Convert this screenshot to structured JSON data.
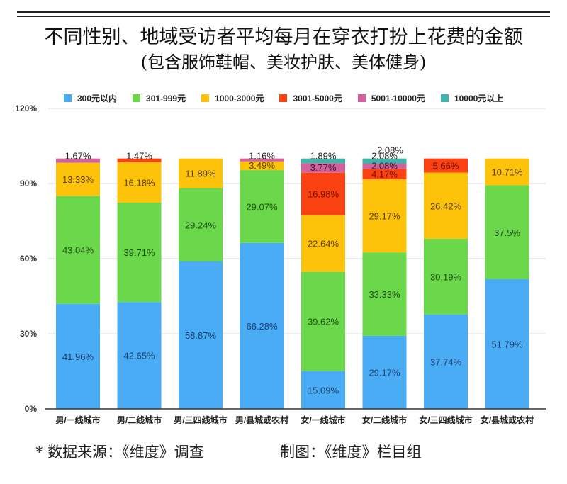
{
  "title": "不同性别、地域受访者平均每月在穿衣打扮上花费的金额",
  "subtitle": "(包含服饰鞋帽、美妆护肤、美体健身)",
  "footer": {
    "source": "* 数据来源：《维度》调查",
    "credit": "制图：《维度》栏目组"
  },
  "chart_data": {
    "type": "bar",
    "stacked": true,
    "title": "不同性别、地域受访者平均每月在穿衣打扮上花费的金额",
    "subtitle": "(包含服饰鞋帽、美妆护肤、美体健身)",
    "xlabel": "",
    "ylabel": "",
    "ylim": [
      0,
      120
    ],
    "yticks": [
      0,
      30,
      60,
      90,
      120
    ],
    "ytick_labels": [
      "0%",
      "30%",
      "60%",
      "90%",
      "120%"
    ],
    "grid": true,
    "legend_position": "top",
    "categories": [
      "男/一线城市",
      "男/二线城市",
      "男/三四线城市",
      "男/县城或农村",
      "女/一线城市",
      "女/二线城市",
      "女/三四线城市",
      "女/县城或农村"
    ],
    "series": [
      {
        "name": "300元以内",
        "color": "#4aacf5",
        "label_color": "#1a3f6e",
        "values": [
          41.96,
          42.65,
          58.87,
          66.28,
          15.09,
          29.17,
          37.74,
          51.79
        ]
      },
      {
        "name": "301-999元",
        "color": "#6ad84a",
        "label_color": "#1d4d12",
        "values": [
          43.04,
          39.71,
          29.24,
          29.07,
          39.62,
          33.33,
          30.19,
          37.5
        ]
      },
      {
        "name": "1000-3000元",
        "color": "#fdc30a",
        "label_color": "#5a3d00",
        "values": [
          13.33,
          16.18,
          11.89,
          3.49,
          22.64,
          29.17,
          26.42,
          10.71
        ]
      },
      {
        "name": "3001-5000元",
        "color": "#fb4212",
        "label_color": "#6e0e00",
        "values": [
          0,
          1.47,
          0,
          0,
          16.98,
          4.17,
          5.66,
          0
        ]
      },
      {
        "name": "5001-10000元",
        "color": "#d2619c",
        "label_color": "#3a1530",
        "values": [
          1.67,
          0,
          0,
          1.16,
          3.77,
          2.08,
          0,
          0
        ]
      },
      {
        "name": "10000元以上",
        "color": "#41b3aa",
        "label_color": "#0d3b38",
        "values": [
          0,
          0,
          0,
          0,
          1.89,
          2.08,
          0,
          0
        ]
      }
    ],
    "data_labels": [
      [
        "41.96%",
        "43.04%",
        "13.33%",
        "",
        "1.67%",
        ""
      ],
      [
        "42.65%",
        "39.71%",
        "16.18%",
        "1.47%",
        "",
        ""
      ],
      [
        "58.87%",
        "29.24%",
        "11.89%",
        "",
        "",
        ""
      ],
      [
        "66.28%",
        "29.07%",
        "3.49%",
        "",
        "1.16%",
        ""
      ],
      [
        "15.09%",
        "39.62%",
        "22.64%",
        "16.98%",
        "3.77%",
        "1.89%"
      ],
      [
        "29.17%",
        "33.33%",
        "29.17%",
        "4.17%",
        "2.08%",
        "2.08%"
      ],
      [
        "37.74%",
        "30.19%",
        "26.42%",
        "5.66%",
        "",
        ""
      ],
      [
        "51.79%",
        "37.5%",
        "10.71%",
        "",
        "",
        ""
      ]
    ]
  }
}
